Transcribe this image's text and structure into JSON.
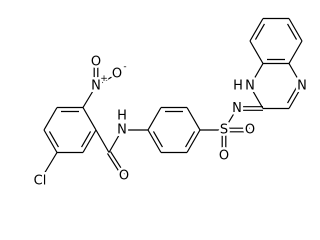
{
  "atoms": [
    {
      "label": "O",
      "charge": "-"
    },
    {
      "label": "N",
      "charge": "+"
    },
    {
      "label": "O"
    },
    {
      "label": "Cl"
    },
    {
      "label": "O"
    },
    {
      "label": "N",
      "h": "H"
    },
    {
      "label": "S"
    },
    {
      "label": "N"
    },
    {
      "label": "O"
    },
    {
      "label": "O"
    },
    {
      "label": "N",
      "h": "H"
    },
    {
      "label": "N"
    }
  ]
}
